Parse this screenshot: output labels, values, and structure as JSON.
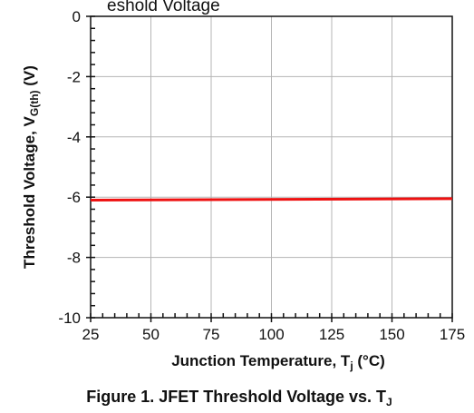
{
  "chart_data": {
    "type": "line",
    "header_fragment": "eshold Voltage",
    "xlabel": "Junction Temperature, T",
    "xlabel_sub": "j",
    "xlabel_unit": " (°C)",
    "ylabel": "Threshold Voltage, V",
    "ylabel_sub": "G(th)",
    "ylabel_unit": " (V)",
    "caption": "Figure 1. JFET Threshold Voltage vs. T",
    "caption_sub": "J",
    "xlim": [
      25,
      175
    ],
    "ylim": [
      -10,
      0
    ],
    "x_ticks": [
      "25",
      "50",
      "75",
      "100",
      "125",
      "150",
      "175"
    ],
    "y_ticks": [
      "0",
      "-2",
      "-4",
      "-6",
      "-8",
      "-10"
    ],
    "grid": true,
    "series": [
      {
        "color": "#ee1111",
        "x": [
          25,
          175
        ],
        "y": [
          -6.1,
          -6.05
        ]
      }
    ]
  }
}
